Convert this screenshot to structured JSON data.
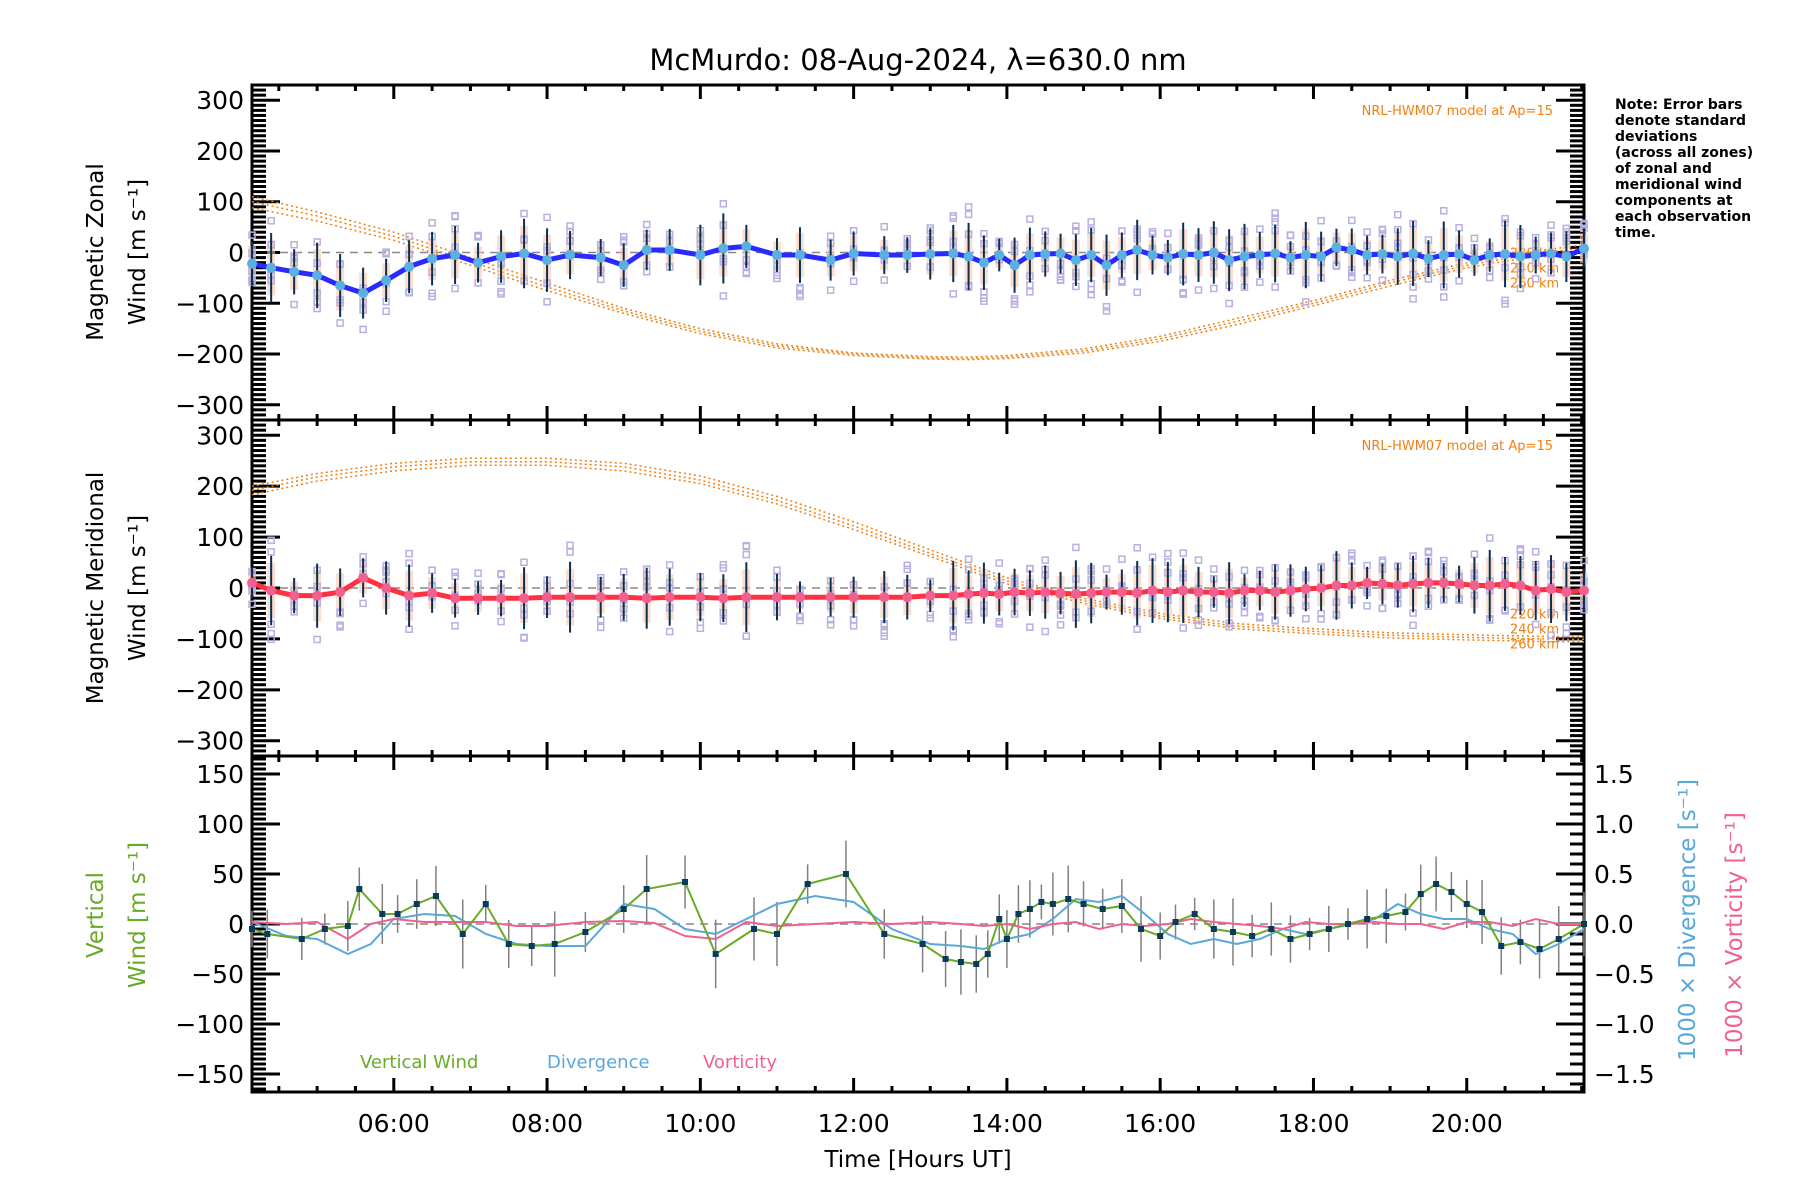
{
  "chart_data": [
    {
      "type": "line",
      "panel": "zonal",
      "title": "McMurdo: 08-Aug-2024, λ=630.0 nm",
      "xlabel": "Time [Hours UT]",
      "ylabel_line1": "Magnetic Zonal",
      "ylabel_line2": "Wind [m s⁻¹]",
      "ylim": [
        -330,
        330
      ],
      "yticks": [
        300,
        200,
        100,
        0,
        -100,
        -200,
        -300
      ],
      "ytick_labels": [
        "300",
        "200",
        "100",
        "0",
        "−100",
        "−200",
        "−300"
      ],
      "model_label": "NRL-HWM07 model at Ap=15",
      "model_altitudes": [
        "220 km",
        "240 km",
        "260 km"
      ],
      "series": [
        {
          "name": "Zonal wind (mean)",
          "color": "#2a2aff",
          "x": [
            4.15,
            4.4,
            4.7,
            5.0,
            5.3,
            5.6,
            5.9,
            6.2,
            6.5,
            6.8,
            7.1,
            7.4,
            7.7,
            8.0,
            8.3,
            8.7,
            9.0,
            9.3,
            9.6,
            10.0,
            10.3,
            10.6,
            11.0,
            11.3,
            11.7,
            12.0,
            12.4,
            12.7,
            13.0,
            13.3,
            13.5,
            13.7,
            13.9,
            14.1,
            14.3,
            14.5,
            14.7,
            14.9,
            15.1,
            15.3,
            15.5,
            15.7,
            15.9,
            16.1,
            16.3,
            16.5,
            16.7,
            16.9,
            17.1,
            17.3,
            17.5,
            17.7,
            17.9,
            18.1,
            18.3,
            18.5,
            18.7,
            18.9,
            19.1,
            19.3,
            19.5,
            19.7,
            19.9,
            20.1,
            20.3,
            20.5,
            20.7,
            20.9,
            21.1,
            21.3,
            21.53
          ],
          "y": [
            -22,
            -30,
            -38,
            -45,
            -65,
            -80,
            -55,
            -28,
            -12,
            -5,
            -20,
            -8,
            -2,
            -15,
            -5,
            -10,
            -25,
            5,
            5,
            -5,
            8,
            12,
            -5,
            -5,
            -15,
            -2,
            -5,
            -5,
            -3,
            -2,
            -8,
            -20,
            -5,
            -25,
            -5,
            -3,
            -2,
            -15,
            -5,
            -25,
            -5,
            5,
            -5,
            -10,
            -3,
            -5,
            0,
            -15,
            -8,
            -5,
            -2,
            -10,
            -5,
            -8,
            10,
            5,
            -5,
            -3,
            -8,
            -2,
            -12,
            -5,
            -3,
            -15,
            -5,
            -3,
            -8,
            -5,
            -2,
            -8,
            8
          ]
        },
        {
          "name": "HWM07 220 km",
          "color": "#f08010",
          "x": [
            4.15,
            5,
            6,
            7,
            8,
            9,
            10,
            11,
            12,
            13,
            13.5,
            14,
            15,
            16,
            17,
            18,
            19,
            20,
            21,
            21.53
          ],
          "y": [
            110,
            80,
            40,
            -10,
            -60,
            -110,
            -150,
            -180,
            -198,
            -205,
            -206,
            -203,
            -190,
            -165,
            -130,
            -95,
            -55,
            -20,
            5,
            15
          ]
        },
        {
          "name": "HWM07 240 km",
          "color": "#f08010",
          "x": [
            4.15,
            5,
            6,
            7,
            8,
            9,
            10,
            11,
            12,
            13,
            13.5,
            14,
            15,
            16,
            17,
            18,
            19,
            20,
            21,
            21.53
          ],
          "y": [
            100,
            72,
            32,
            -18,
            -68,
            -115,
            -155,
            -184,
            -200,
            -208,
            -209,
            -206,
            -194,
            -170,
            -136,
            -100,
            -60,
            -25,
            0,
            8
          ]
        },
        {
          "name": "HWM07 260 km",
          "color": "#f08010",
          "x": [
            4.15,
            5,
            6,
            7,
            8,
            9,
            10,
            11,
            12,
            13,
            13.5,
            14,
            15,
            16,
            17,
            18,
            19,
            20,
            21,
            21.53
          ],
          "y": [
            88,
            62,
            24,
            -25,
            -75,
            -120,
            -160,
            -188,
            -203,
            -210,
            -211,
            -209,
            -198,
            -175,
            -142,
            -105,
            -66,
            -30,
            -5,
            2
          ]
        }
      ]
    },
    {
      "type": "line",
      "panel": "meridional",
      "ylabel_line1": "Magnetic Meridional",
      "ylabel_line2": "Wind [m s⁻¹]",
      "ylim": [
        -330,
        330
      ],
      "yticks": [
        300,
        200,
        100,
        0,
        -100,
        -200,
        -300
      ],
      "ytick_labels": [
        "300",
        "200",
        "100",
        "0",
        "−100",
        "−200",
        "−300"
      ],
      "model_label": "NRL-HWM07 model at Ap=15",
      "model_altitudes": [
        "220 km",
        "240 km",
        "260 km"
      ],
      "series": [
        {
          "name": "Meridional wind (mean)",
          "color": "#ff3040",
          "x": [
            4.15,
            4.4,
            4.7,
            5.0,
            5.3,
            5.6,
            5.9,
            6.2,
            6.5,
            6.8,
            7.1,
            7.4,
            7.7,
            8.0,
            8.3,
            8.7,
            9.0,
            9.3,
            9.6,
            10.0,
            10.3,
            10.6,
            11.0,
            11.3,
            11.7,
            12.0,
            12.4,
            12.7,
            13.0,
            13.3,
            13.5,
            13.7,
            13.9,
            14.1,
            14.3,
            14.5,
            14.7,
            14.9,
            15.1,
            15.3,
            15.5,
            15.7,
            15.9,
            16.1,
            16.3,
            16.5,
            16.7,
            16.9,
            17.1,
            17.3,
            17.5,
            17.7,
            17.9,
            18.1,
            18.3,
            18.5,
            18.7,
            18.9,
            19.1,
            19.3,
            19.5,
            19.7,
            19.9,
            20.1,
            20.3,
            20.5,
            20.7,
            20.9,
            21.1,
            21.3,
            21.53
          ],
          "y": [
            10,
            -5,
            -15,
            -15,
            -8,
            20,
            0,
            -15,
            -10,
            -20,
            -20,
            -20,
            -20,
            -18,
            -18,
            -18,
            -18,
            -20,
            -18,
            -18,
            -20,
            -18,
            -18,
            -18,
            -18,
            -18,
            -18,
            -18,
            -15,
            -15,
            -12,
            -10,
            -12,
            -8,
            -10,
            -8,
            -10,
            -12,
            -10,
            -8,
            -8,
            -10,
            -5,
            -8,
            -5,
            -8,
            -8,
            -10,
            -5,
            -5,
            -8,
            -5,
            -2,
            0,
            5,
            5,
            10,
            8,
            5,
            8,
            10,
            10,
            8,
            5,
            5,
            8,
            5,
            -5,
            -2,
            -8,
            -5
          ]
        },
        {
          "name": "HWM07 220 km",
          "color": "#f08010",
          "x": [
            4.15,
            5,
            6,
            7,
            8,
            9,
            10,
            11,
            12,
            13,
            14,
            15,
            16,
            17,
            18,
            19,
            20,
            21,
            21.53
          ],
          "y": [
            200,
            225,
            245,
            255,
            255,
            245,
            220,
            180,
            130,
            75,
            20,
            -20,
            -50,
            -70,
            -80,
            -88,
            -92,
            -95,
            -96
          ]
        },
        {
          "name": "HWM07 240 km",
          "color": "#f08010",
          "x": [
            4.15,
            5,
            6,
            7,
            8,
            9,
            10,
            11,
            12,
            13,
            14,
            15,
            16,
            17,
            18,
            19,
            20,
            21,
            21.53
          ],
          "y": [
            192,
            218,
            238,
            248,
            248,
            238,
            212,
            172,
            122,
            68,
            14,
            -25,
            -55,
            -75,
            -85,
            -93,
            -97,
            -100,
            -101
          ]
        },
        {
          "name": "HWM07 260 km",
          "color": "#f08010",
          "x": [
            4.15,
            5,
            6,
            7,
            8,
            9,
            10,
            11,
            12,
            13,
            14,
            15,
            16,
            17,
            18,
            19,
            20,
            21,
            21.53
          ],
          "y": [
            183,
            210,
            230,
            241,
            241,
            230,
            205,
            165,
            115,
            62,
            8,
            -30,
            -60,
            -80,
            -90,
            -98,
            -102,
            -105,
            -106
          ]
        }
      ]
    },
    {
      "type": "line",
      "panel": "vertical",
      "ylabel_line1": "Vertical",
      "ylabel_line2": "Wind [m s⁻¹]",
      "ylim": [
        -168,
        168
      ],
      "yticks": [
        150,
        100,
        50,
        0,
        -50,
        -100,
        -150
      ],
      "ytick_labels": [
        "150",
        "100",
        "50",
        "0",
        "−50",
        "−100",
        "−150"
      ],
      "y2label_div": "1000 × Divergence [s⁻¹]",
      "y2label_vort": "1000 × Vorticity [s⁻¹]",
      "y2lim": [
        -1.68,
        1.68
      ],
      "y2ticks": [
        1.5,
        1.0,
        0.5,
        0.0,
        -0.5,
        -1.0,
        -1.5
      ],
      "y2tick_labels": [
        "1.5",
        "1.0",
        "0.5",
        "0.0",
        "−0.5",
        "−1.0",
        "−1.5"
      ],
      "xticks": [
        "06:00",
        "08:00",
        "10:00",
        "12:00",
        "14:00",
        "16:00",
        "18:00",
        "20:00"
      ],
      "xtick_hours": [
        6,
        8,
        10,
        12,
        14,
        16,
        18,
        20
      ],
      "xlim": [
        4.15,
        21.53
      ],
      "legend": [
        {
          "label": "Vertical Wind",
          "color": "#6aaa2a"
        },
        {
          "label": "Divergence",
          "color": "#5aa8d8"
        },
        {
          "label": "Vorticity",
          "color": "#f06090"
        }
      ],
      "series": [
        {
          "name": "Vertical Wind",
          "color": "#6aaa2a",
          "x": [
            4.15,
            4.35,
            4.8,
            5.1,
            5.4,
            5.55,
            5.85,
            6.05,
            6.3,
            6.55,
            6.9,
            7.2,
            7.5,
            7.8,
            8.1,
            8.5,
            9.0,
            9.3,
            9.8,
            10.2,
            10.7,
            11.0,
            11.4,
            11.9,
            12.4,
            12.9,
            13.2,
            13.4,
            13.6,
            13.75,
            13.9,
            14.0,
            14.15,
            14.3,
            14.45,
            14.6,
            14.8,
            15.0,
            15.25,
            15.5,
            15.75,
            16.0,
            16.2,
            16.45,
            16.7,
            16.95,
            17.2,
            17.45,
            17.7,
            17.95,
            18.2,
            18.45,
            18.7,
            18.95,
            19.2,
            19.4,
            19.6,
            19.8,
            20.0,
            20.2,
            20.45,
            20.7,
            20.95,
            21.2,
            21.53
          ],
          "y": [
            -5,
            -10,
            -15,
            -5,
            -2,
            35,
            10,
            10,
            20,
            28,
            -10,
            20,
            -20,
            -22,
            -20,
            -8,
            15,
            35,
            42,
            -30,
            -5,
            -10,
            40,
            50,
            -10,
            -20,
            -35,
            -38,
            -40,
            -30,
            5,
            -15,
            10,
            15,
            22,
            20,
            25,
            20,
            15,
            18,
            -5,
            -12,
            2,
            10,
            -5,
            -8,
            -12,
            -5,
            -15,
            -10,
            -5,
            0,
            5,
            8,
            12,
            30,
            40,
            32,
            20,
            12,
            -22,
            -18,
            -25,
            -15,
            0
          ]
        },
        {
          "name": "Divergence",
          "color": "#5aa8d8",
          "axis": "right",
          "x": [
            4.15,
            4.6,
            5.0,
            5.4,
            5.7,
            6.0,
            6.4,
            6.8,
            7.2,
            7.6,
            8.0,
            8.5,
            9.0,
            9.4,
            9.8,
            10.2,
            10.6,
            11.0,
            11.5,
            12.0,
            12.5,
            13.0,
            13.4,
            13.7,
            14.0,
            14.3,
            14.6,
            14.9,
            15.2,
            15.5,
            15.8,
            16.1,
            16.4,
            16.7,
            17.0,
            17.3,
            17.6,
            17.9,
            18.2,
            18.5,
            18.8,
            19.1,
            19.4,
            19.7,
            20.0,
            20.3,
            20.6,
            20.9,
            21.2,
            21.53
          ],
          "y": [
            0.02,
            -0.12,
            -0.15,
            -0.3,
            -0.2,
            0.05,
            0.1,
            0.08,
            -0.1,
            -0.2,
            -0.22,
            -0.22,
            0.2,
            0.15,
            -0.05,
            -0.1,
            0.05,
            0.2,
            0.28,
            0.22,
            -0.05,
            -0.2,
            -0.22,
            -0.25,
            -0.15,
            -0.1,
            0.05,
            0.25,
            0.22,
            0.28,
            0.1,
            -0.1,
            -0.2,
            -0.15,
            -0.2,
            -0.15,
            -0.05,
            -0.1,
            -0.05,
            0.0,
            0.05,
            0.2,
            0.1,
            0.05,
            0.05,
            -0.05,
            -0.1,
            -0.3,
            -0.2,
            -0.05
          ]
        },
        {
          "name": "Vorticity",
          "color": "#f06090",
          "axis": "right",
          "x": [
            4.15,
            4.6,
            5.0,
            5.4,
            5.7,
            6.0,
            6.4,
            6.8,
            7.2,
            7.6,
            8.0,
            8.5,
            9.0,
            9.4,
            9.8,
            10.2,
            10.6,
            11.0,
            11.5,
            12.0,
            12.5,
            13.0,
            13.4,
            13.7,
            14.0,
            14.3,
            14.6,
            14.9,
            15.2,
            15.5,
            15.8,
            16.1,
            16.4,
            16.7,
            17.0,
            17.3,
            17.6,
            17.9,
            18.2,
            18.5,
            18.8,
            19.1,
            19.4,
            19.7,
            20.0,
            20.3,
            20.6,
            20.9,
            21.2,
            21.53
          ],
          "y": [
            0.02,
            0.0,
            0.02,
            -0.15,
            0.0,
            0.05,
            0.02,
            0.02,
            0.02,
            -0.02,
            -0.02,
            0.02,
            0.03,
            0.01,
            -0.12,
            -0.15,
            0.02,
            -0.02,
            0.0,
            0.02,
            0.0,
            0.02,
            0.0,
            -0.02,
            0.0,
            -0.05,
            0.0,
            0.02,
            -0.05,
            0.0,
            -0.02,
            0.0,
            0.05,
            0.02,
            0.0,
            -0.02,
            -0.05,
            0.02,
            0.0,
            0.0,
            0.02,
            0.0,
            0.0,
            -0.05,
            0.02,
            0.02,
            -0.02,
            0.05,
            0.0,
            0.0
          ]
        }
      ]
    }
  ],
  "note": [
    "Note: Error bars",
    "denote standard",
    "deviations",
    "(across all zones)",
    "of zonal and",
    "meridional wind",
    "components at",
    "each observation",
    "time."
  ]
}
